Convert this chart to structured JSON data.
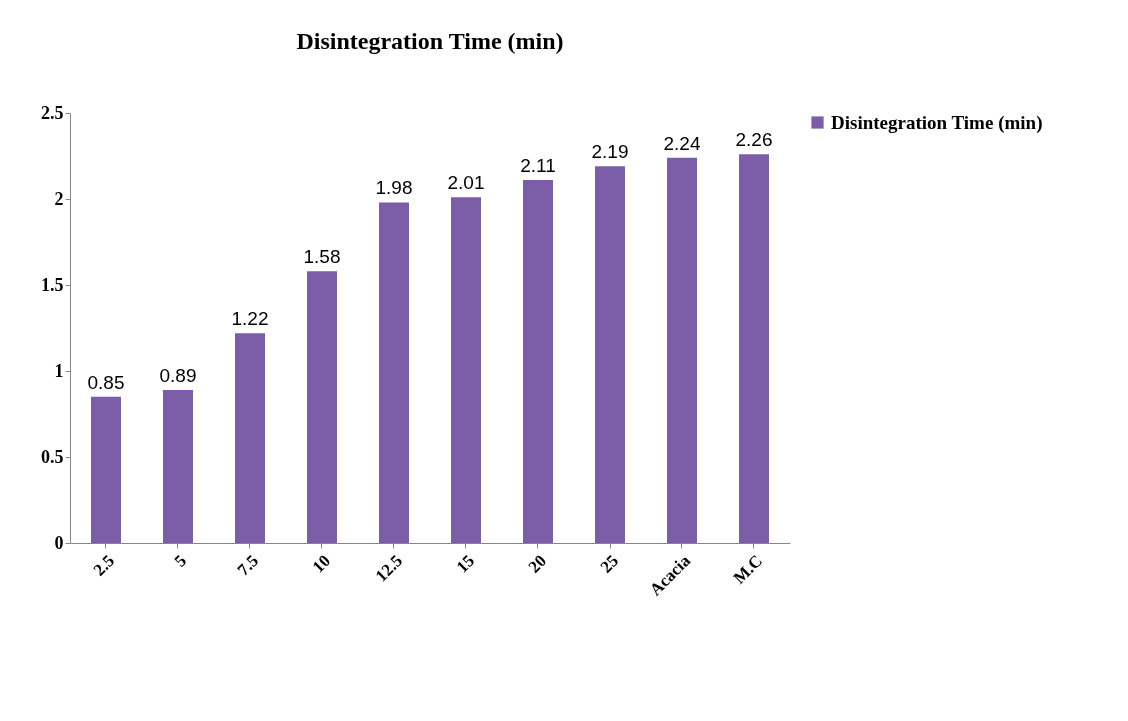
{
  "chart_data": {
    "type": "bar",
    "title": "Disintegration  Time (min)",
    "categories": [
      "2.5",
      "5",
      "7.5",
      "10",
      "12.5",
      "15",
      "20",
      "25",
      "Acacia",
      "M.C"
    ],
    "series": [
      {
        "name": "Disintegration  Time (min)",
        "color": "#7b5ea7",
        "values": [
          0.85,
          0.89,
          1.22,
          1.58,
          1.98,
          2.01,
          2.11,
          2.19,
          2.24,
          2.26
        ]
      }
    ],
    "ylim": [
      0,
      2.5
    ],
    "yticks": [
      0,
      0.5,
      1,
      1.5,
      2,
      2.5
    ],
    "grid": false,
    "legend": "right",
    "data_labels": true
  }
}
